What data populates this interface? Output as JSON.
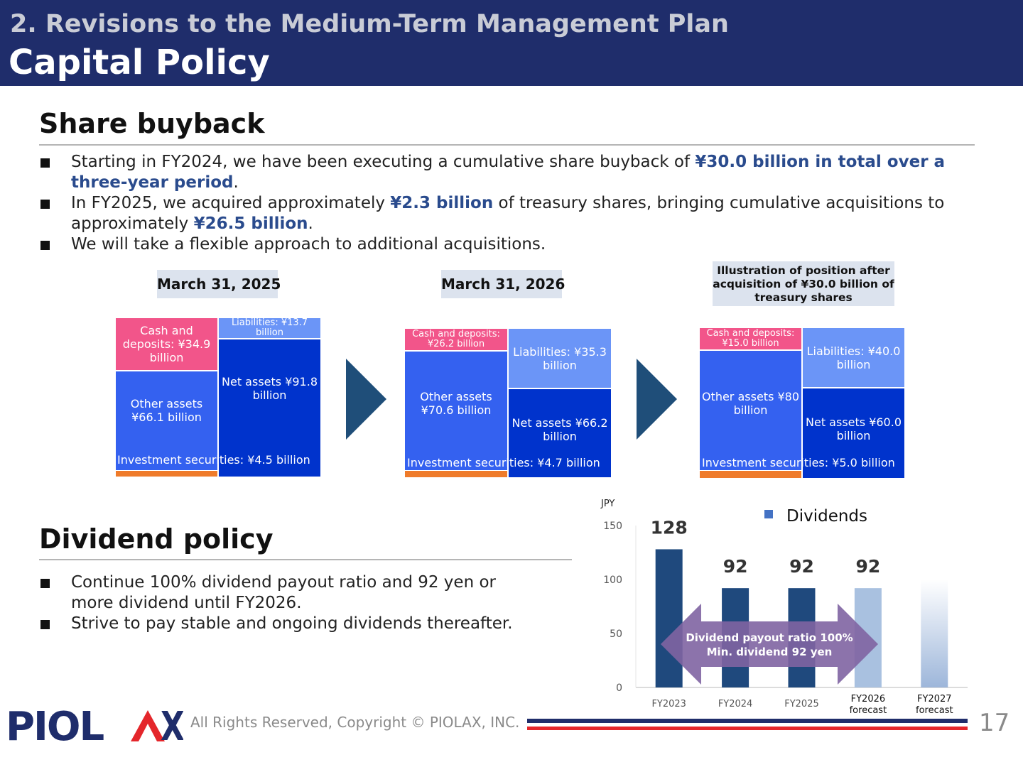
{
  "header": {
    "section": "2. Revisions to the Medium-Term Management Plan",
    "title": "Capital Policy"
  },
  "buyback": {
    "title": "Share buyback",
    "bullet1": {
      "pre": "Starting in FY2024, we have been executing a cumulative share buyback of ",
      "hl": "¥30.0 billion in total over a three-year period",
      "post": "."
    },
    "bullet2": {
      "pre": "In FY2025, we acquired approximately ",
      "hl1": "¥2.3 billion",
      "mid": " of treasury shares, bringing cumulative acquisitions to approximately ",
      "hl2": "¥26.5 billion",
      "post": "."
    },
    "bullet3": "We will take a flexible approach to additional acquisitions."
  },
  "balance": {
    "label1": "March 31, 2025",
    "label2": "March 31, 2026",
    "label3": "Illustration of position after acquisition of ¥30.0 billion of treasury shares",
    "s1": {
      "cash": "Cash and deposits: ¥34.9 billion",
      "other": "Other assets ¥66.1 billion",
      "liab": "Liabilities: ¥13.7 billion",
      "net": "Net assets ¥91.8 billion",
      "inv": "Investment securities: ¥4.5 billion"
    },
    "s2": {
      "cash": "Cash and deposits: ¥26.2 billion",
      "other": "Other assets ¥70.6 billion",
      "liab": "Liabilities: ¥35.3 billion",
      "net": "Net assets ¥66.2 billion",
      "inv": "Investment securities: ¥4.7 billion"
    },
    "s3": {
      "cash": "Cash and deposits: ¥15.0 billion",
      "other": "Other assets ¥80 billion",
      "liab": "Liabilities: ¥40.0 billion",
      "net": "Net assets ¥60.0 billion",
      "inv": "Investment securities: ¥5.0 billion"
    }
  },
  "dividend": {
    "title": "Dividend policy",
    "bullet1": "Continue 100% dividend payout ratio and 92 yen or more dividend until FY2026.",
    "bullet2": "Strive to pay stable and ongoing dividends thereafter."
  },
  "chart_data": {
    "type": "bar",
    "ylabel": "JPY",
    "ylim": [
      0,
      150
    ],
    "yticks": [
      "0",
      "50",
      "100",
      "150"
    ],
    "legend": "Dividends",
    "categories": [
      "FY2023",
      "FY2024",
      "FY2025",
      "FY2026 forecast",
      "FY2027 forecast"
    ],
    "values": [
      128,
      92,
      92,
      92,
      100
    ],
    "data_labels": [
      "128",
      "92",
      "92",
      "92",
      ""
    ],
    "annotation": "Dividend payout ratio 100% Min. dividend 92 yen",
    "colors": {
      "actual": "#1f497d",
      "forecast": "#a9c1e0",
      "arrow": "#8064a2"
    }
  },
  "footer": {
    "copyright": "All Rights Reserved, Copyright © PIOLAX, INC.",
    "page": "17",
    "logo_text": "PIOLAX"
  }
}
